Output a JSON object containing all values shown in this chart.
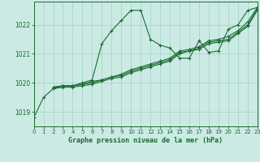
{
  "title": "Graphe pression niveau de la mer (hPa)",
  "bg_color": "#cceae4",
  "grid_color": "#a8d5cc",
  "line_color": "#1a6b30",
  "xlim": [
    0,
    23
  ],
  "ylim": [
    1018.5,
    1022.8
  ],
  "yticks": [
    1019,
    1020,
    1021,
    1022
  ],
  "xticks": [
    0,
    1,
    2,
    3,
    4,
    5,
    6,
    7,
    8,
    9,
    10,
    11,
    12,
    13,
    14,
    15,
    16,
    17,
    18,
    19,
    20,
    21,
    22,
    23
  ],
  "lines": [
    {
      "x": [
        0,
        1,
        2,
        3,
        4,
        5,
        6,
        7,
        8,
        9,
        10,
        11,
        12,
        13,
        14,
        15,
        16,
        17,
        18,
        19,
        20,
        21,
        22,
        23
      ],
      "y": [
        1018.8,
        1019.5,
        1019.8,
        1019.9,
        1019.9,
        1020.0,
        1020.1,
        1021.35,
        1021.8,
        1022.15,
        1022.5,
        1022.5,
        1021.5,
        1021.3,
        1021.2,
        1020.85,
        1020.85,
        1021.45,
        1021.05,
        1021.1,
        1021.85,
        1022.0,
        1022.5,
        1022.6
      ]
    },
    {
      "x": [
        2,
        3,
        4,
        5,
        6,
        7,
        8,
        9,
        10,
        11,
        12,
        13,
        14,
        15,
        16,
        17,
        18,
        19,
        20,
        21,
        22,
        23
      ],
      "y": [
        1019.85,
        1019.9,
        1019.9,
        1019.95,
        1020.05,
        1020.1,
        1020.2,
        1020.3,
        1020.45,
        1020.55,
        1020.65,
        1020.75,
        1020.85,
        1021.1,
        1021.15,
        1021.25,
        1021.45,
        1021.5,
        1021.6,
        1021.8,
        1022.1,
        1022.6
      ]
    },
    {
      "x": [
        2,
        3,
        4,
        5,
        6,
        7,
        8,
        9,
        10,
        11,
        12,
        13,
        14,
        15,
        16,
        17,
        18,
        19,
        20,
        21,
        22,
        23
      ],
      "y": [
        1019.85,
        1019.9,
        1019.9,
        1019.95,
        1020.0,
        1020.1,
        1020.2,
        1020.25,
        1020.4,
        1020.5,
        1020.6,
        1020.7,
        1020.8,
        1021.05,
        1021.1,
        1021.2,
        1021.4,
        1021.45,
        1021.5,
        1021.75,
        1022.0,
        1022.55
      ]
    },
    {
      "x": [
        2,
        3,
        4,
        5,
        6,
        7,
        8,
        9,
        10,
        11,
        12,
        13,
        14,
        15,
        16,
        17,
        18,
        19,
        20,
        21,
        22,
        23
      ],
      "y": [
        1019.8,
        1019.85,
        1019.85,
        1019.9,
        1019.95,
        1020.05,
        1020.15,
        1020.2,
        1020.35,
        1020.45,
        1020.55,
        1020.65,
        1020.75,
        1021.0,
        1021.1,
        1021.15,
        1021.35,
        1021.4,
        1021.45,
        1021.7,
        1021.95,
        1022.5
      ]
    }
  ]
}
